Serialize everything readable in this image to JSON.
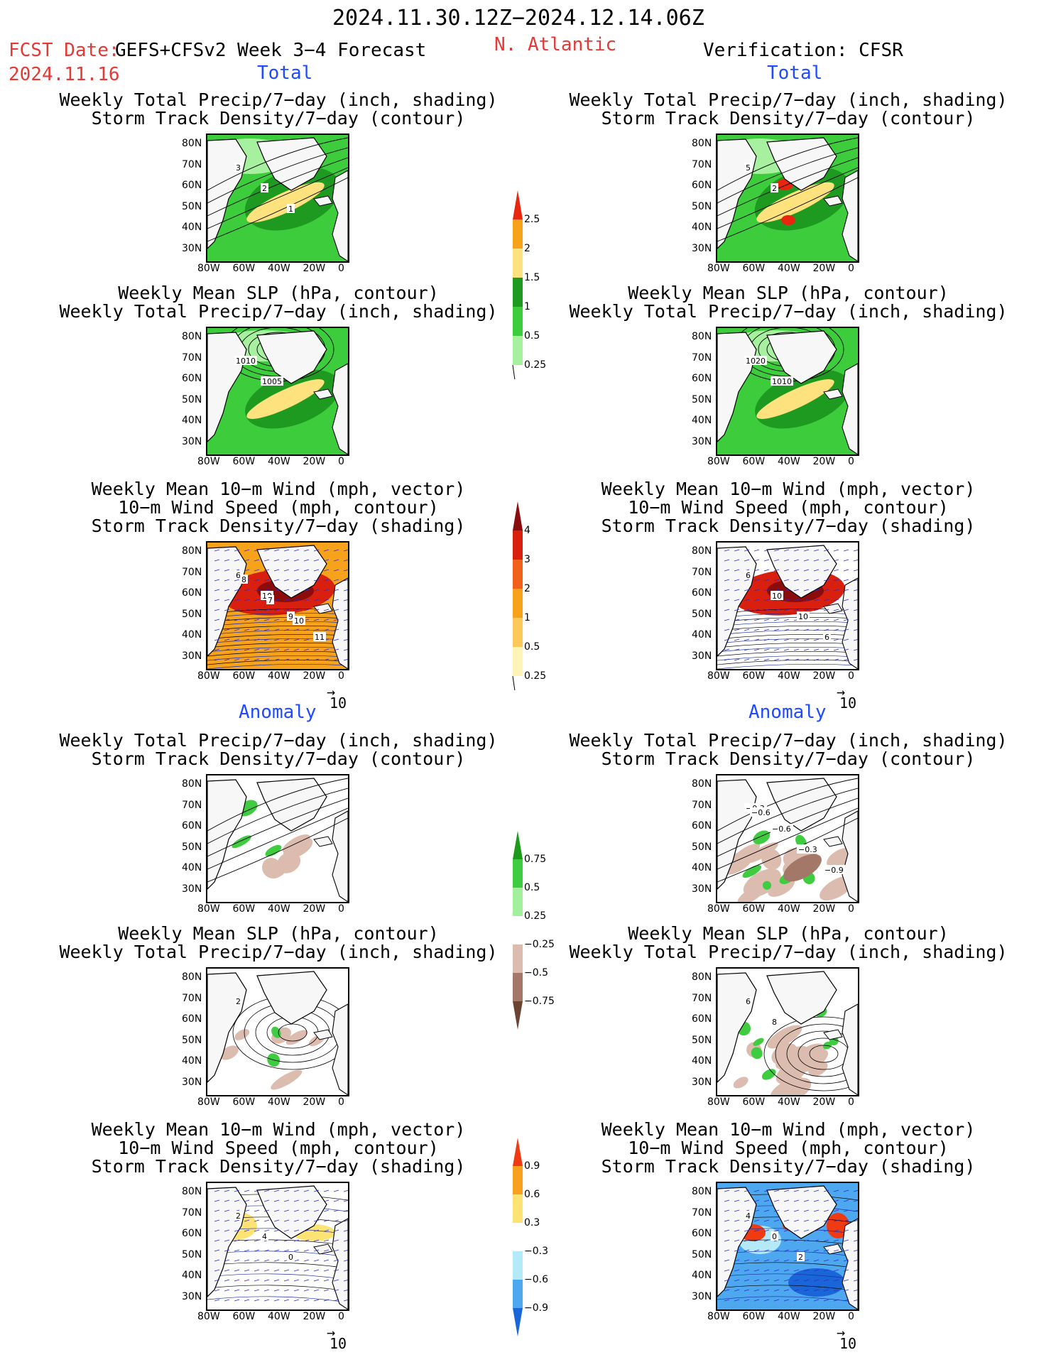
{
  "header": {
    "date_range": "2024.11.30.12Z−2024.12.14.06Z",
    "fcst_date_label": "FCST Date:",
    "fcst_date": "2024.11.16",
    "model": "GEFS+CFSv2 Week 3−4 Forecast",
    "region": "N. Atlantic",
    "verification": "Verification: CFSR"
  },
  "sections": {
    "total": "Total",
    "anomaly": "Anomaly"
  },
  "titles": {
    "precip_track": [
      "Weekly Total Precip/7−day (inch, shading)",
      "Storm Track Density/7−day (contour)"
    ],
    "slp_precip": [
      "Weekly Mean SLP (hPa, contour)",
      "Weekly Total Precip/7−day (inch, shading)"
    ],
    "wind_track": [
      "Weekly Mean 10−m Wind (mph, vector)",
      "10−m Wind Speed (mph, contour)",
      "Storm Track Density/7−day (shading)"
    ]
  },
  "axes": {
    "lat": [
      "80N",
      "70N",
      "60N",
      "50N",
      "40N",
      "30N"
    ],
    "lon": [
      "80W",
      "60W",
      "40W",
      "20W",
      "0"
    ]
  },
  "vector_ref": "10",
  "colorbars": {
    "precip_total": {
      "labels": [
        "2.5",
        "2",
        "1.5",
        "1",
        "0.5",
        "0.25"
      ],
      "colors": [
        "#e8250e",
        "#f7a21b",
        "#fde27d",
        "#1f9a20",
        "#3ccc3c",
        "#a6f0a0"
      ]
    },
    "track_total": {
      "labels": [
        "4",
        "3",
        "2",
        "1",
        "0.5",
        "0.25"
      ],
      "colors": [
        "#8b0c0c",
        "#d9200e",
        "#f2611a",
        "#f7a21b",
        "#fcc85a",
        "#fff3b5"
      ]
    },
    "precip_anom": {
      "labels": [
        "0.75",
        "0.5",
        "0.25",
        "−0.25",
        "−0.5",
        "−0.75"
      ],
      "colors": [
        "#1c9a1c",
        "#40cc40",
        "#a2f09c",
        "#ffffff",
        "#ddbcb0",
        "#a47868",
        "#6b4431"
      ]
    },
    "track_anom": {
      "labels": [
        "0.9",
        "0.6",
        "0.3",
        "−0.3",
        "−0.6",
        "−0.9"
      ],
      "colors": [
        "#ef3a12",
        "#f8a11e",
        "#fde373",
        "#ffffff",
        "#b4eaf8",
        "#4da8f0",
        "#1a66d8"
      ]
    }
  },
  "contour_labels": {
    "f_total_precip": [
      "3",
      "2",
      "1"
    ],
    "v_total_precip": [
      "5",
      "2"
    ],
    "f_total_slp": [
      "1010",
      "1005"
    ],
    "v_total_slp": [
      "1020",
      "1010"
    ],
    "f_total_wind": [
      "6",
      "10",
      "9",
      "11",
      "8",
      "7",
      "10"
    ],
    "v_total_wind": [
      "6",
      "10",
      "10",
      "6"
    ],
    "v_anom_precip": [
      "−0.3",
      "−0.6",
      "−0.3",
      "−0.9",
      "−0.6"
    ],
    "f_anom_slp": [
      "2"
    ],
    "v_anom_slp": [
      "6",
      "8"
    ],
    "f_anom_wind": [
      "2",
      "4",
      "0"
    ],
    "v_anom_wind": [
      "4",
      "0",
      "2"
    ]
  }
}
